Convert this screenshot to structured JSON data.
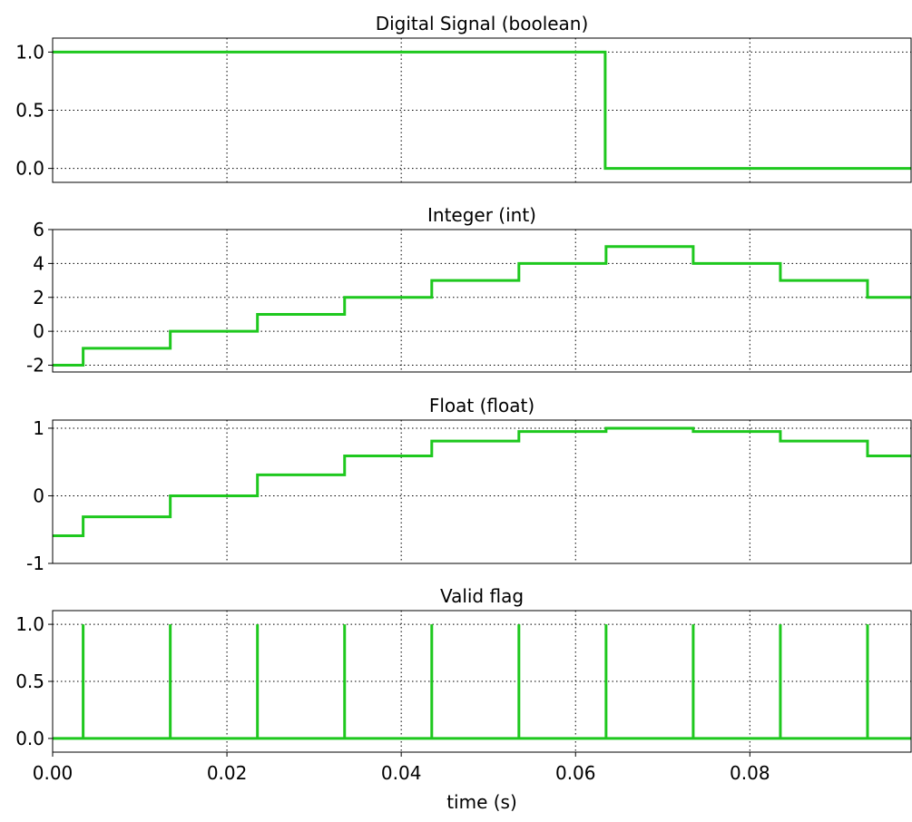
{
  "chart_data": [
    {
      "type": "line",
      "step": true,
      "title": "Digital Signal (boolean)",
      "xlim": [
        0,
        0.0985
      ],
      "ylim": [
        -0.12,
        1.12
      ],
      "yticks": [
        1.0,
        0.5,
        0.0
      ],
      "ytick_labels": [
        "1.0",
        "0.5",
        "0.0"
      ],
      "grid": true,
      "color": "#1ec81e",
      "x": [
        0.0,
        0.0634,
        0.0985
      ],
      "y": [
        1,
        0,
        0
      ]
    },
    {
      "type": "line",
      "step": true,
      "title": "Integer (int)",
      "xlim": [
        0,
        0.0985
      ],
      "ylim": [
        -2.4,
        6.0
      ],
      "yticks": [
        6,
        4,
        2,
        0,
        -2
      ],
      "ytick_labels": [
        "6",
        "4",
        "2",
        "0",
        "-2"
      ],
      "grid": true,
      "color": "#1ec81e",
      "x": [
        0.0,
        0.0035,
        0.0135,
        0.0235,
        0.0335,
        0.0435,
        0.0535,
        0.0635,
        0.0735,
        0.0835,
        0.0935,
        0.0985
      ],
      "y": [
        -2,
        -1,
        0,
        1,
        2,
        3,
        4,
        5,
        4,
        3,
        2,
        2
      ]
    },
    {
      "type": "line",
      "step": true,
      "title": "Float (float)",
      "xlim": [
        0,
        0.0985
      ],
      "ylim": [
        -1.0,
        1.12
      ],
      "yticks": [
        1,
        0,
        -1
      ],
      "ytick_labels": [
        "1",
        "0",
        "-1"
      ],
      "grid": true,
      "color": "#1ec81e",
      "x": [
        0.0,
        0.0035,
        0.0135,
        0.0235,
        0.0335,
        0.0435,
        0.0535,
        0.0635,
        0.0735,
        0.0835,
        0.0935,
        0.0985
      ],
      "y": [
        -0.59,
        -0.31,
        0.0,
        0.31,
        0.59,
        0.81,
        0.95,
        1.0,
        0.95,
        0.81,
        0.59,
        0.59
      ]
    },
    {
      "type": "line",
      "step": true,
      "title": "Valid flag",
      "xlabel": "time (s)",
      "xlim": [
        0,
        0.0985
      ],
      "ylim": [
        -0.12,
        1.12
      ],
      "yticks": [
        1.0,
        0.5,
        0.0
      ],
      "ytick_labels": [
        "1.0",
        "0.5",
        "0.0"
      ],
      "xticks": [
        0.0,
        0.02,
        0.04,
        0.06,
        0.08
      ],
      "xtick_labels": [
        "0.00",
        "0.02",
        "0.04",
        "0.06",
        "0.08"
      ],
      "grid": true,
      "color": "#1ec81e",
      "pulses_x": [
        0.0035,
        0.0135,
        0.0235,
        0.0335,
        0.0435,
        0.0535,
        0.0635,
        0.0735,
        0.0835,
        0.0935
      ],
      "baseline": 0,
      "pulse_value": 1
    }
  ]
}
